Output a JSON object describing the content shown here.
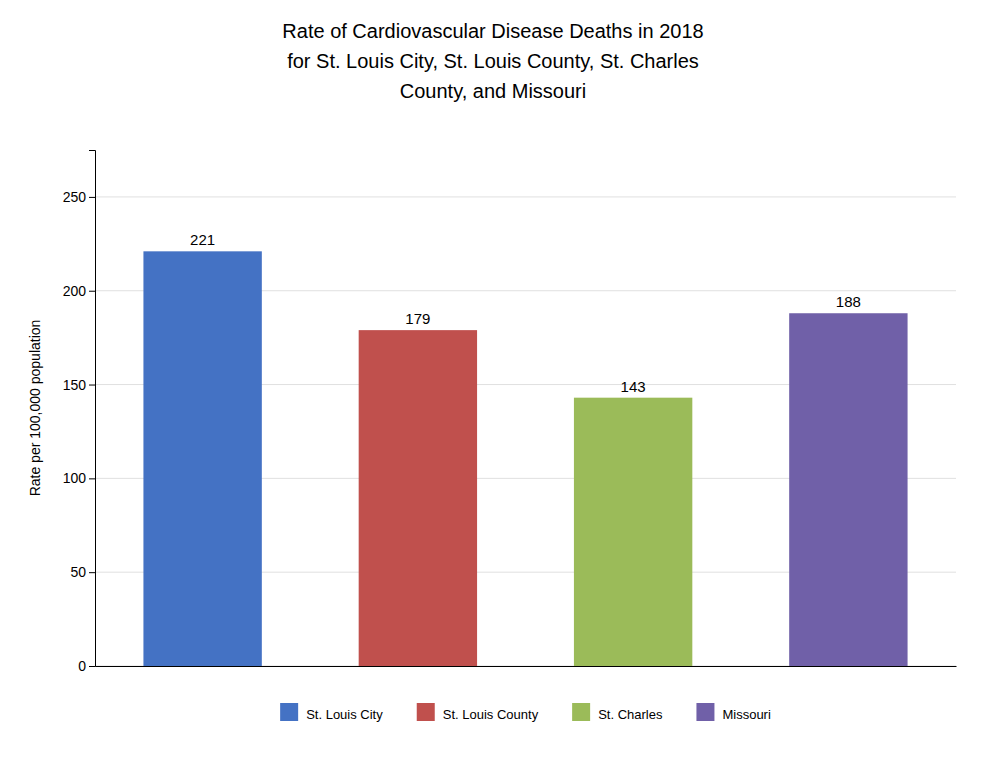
{
  "chart_data": {
    "type": "bar",
    "title": "Rate of Cardiovascular Disease Deaths in 2018\nfor St. Louis City, St. Louis County, St. Charles\nCounty, and Missouri",
    "ylabel": "Rate per 100,000 population",
    "categories": [
      "St. Louis City",
      "St. Louis County",
      "St. Charles",
      "Missouri"
    ],
    "values": [
      221,
      179,
      143,
      188
    ],
    "colors": [
      "#4472C4",
      "#C0504D",
      "#9BBB59",
      "#7060A8"
    ],
    "ylim": [
      0,
      275
    ],
    "yticks": [
      0,
      50,
      100,
      150,
      200,
      250
    ],
    "grid": true,
    "data_labels": true,
    "legend": "bottom",
    "tick_labels": "y"
  }
}
